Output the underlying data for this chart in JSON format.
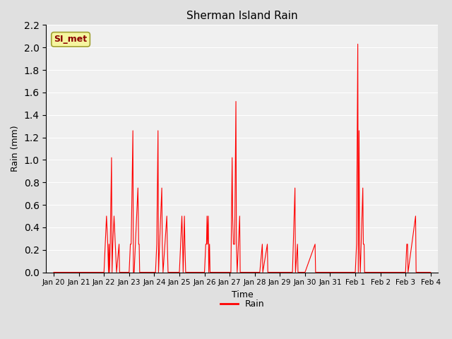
{
  "title": "Sherman Island Rain",
  "xlabel": "Time",
  "ylabel": "Rain (mm)",
  "ylim": [
    0.0,
    2.2
  ],
  "yticks": [
    0.0,
    0.2,
    0.4,
    0.6,
    0.8,
    1.0,
    1.2,
    1.4,
    1.6,
    1.8,
    2.0,
    2.2
  ],
  "line_color": "red",
  "line_label": "Rain",
  "fig_bg_color": "#e0e0e0",
  "plot_bg_color": "#f0f0f0",
  "annotation_text": "SI_met",
  "annotation_bg": "#f5f5a0",
  "annotation_border": "#a0a030",
  "annotation_text_color": "#8b0000",
  "tick_labels": [
    "Jan 20",
    "Jan 21",
    "Jan 22",
    "Jan 23",
    "Jan 24",
    "Jan 25",
    "Jan 26",
    "Jan 27",
    "Jan 28",
    "Jan 29",
    "Jan 30",
    "Jan 31",
    "Feb 1",
    "Feb 2",
    "Feb 3",
    "Feb 4"
  ],
  "tick_positions": [
    0,
    1,
    2,
    3,
    4,
    5,
    6,
    7,
    8,
    9,
    10,
    11,
    12,
    13,
    14,
    15
  ],
  "xlim": [
    -0.3,
    15.3
  ],
  "data": [
    [
      0.0,
      0.0
    ],
    [
      0.02,
      0.0
    ],
    [
      0.1,
      0.0
    ],
    [
      0.5,
      0.0
    ],
    [
      0.9,
      0.0
    ],
    [
      1.0,
      0.0
    ],
    [
      1.5,
      0.0
    ],
    [
      1.9,
      0.0
    ],
    [
      2.0,
      0.0
    ],
    [
      2.05,
      0.25
    ],
    [
      2.1,
      0.5
    ],
    [
      2.15,
      0.25
    ],
    [
      2.18,
      0.0
    ],
    [
      2.2,
      0.25
    ],
    [
      2.22,
      0.0
    ],
    [
      2.25,
      0.25
    ],
    [
      2.3,
      1.02
    ],
    [
      2.32,
      0.0
    ],
    [
      2.35,
      0.25
    ],
    [
      2.4,
      0.5
    ],
    [
      2.45,
      0.25
    ],
    [
      2.5,
      0.0
    ],
    [
      2.6,
      0.25
    ],
    [
      2.62,
      0.0
    ],
    [
      2.7,
      0.0
    ],
    [
      2.8,
      0.0
    ],
    [
      2.9,
      0.0
    ],
    [
      3.0,
      0.0
    ],
    [
      3.05,
      0.25
    ],
    [
      3.08,
      0.25
    ],
    [
      3.1,
      0.5
    ],
    [
      3.15,
      1.26
    ],
    [
      3.17,
      0.0
    ],
    [
      3.2,
      0.0
    ],
    [
      3.25,
      0.25
    ],
    [
      3.3,
      0.5
    ],
    [
      3.35,
      0.75
    ],
    [
      3.38,
      0.25
    ],
    [
      3.4,
      0.25
    ],
    [
      3.42,
      0.0
    ],
    [
      3.5,
      0.0
    ],
    [
      3.7,
      0.0
    ],
    [
      3.9,
      0.0
    ],
    [
      4.0,
      0.0
    ],
    [
      4.05,
      0.0
    ],
    [
      4.1,
      0.25
    ],
    [
      4.15,
      1.26
    ],
    [
      4.17,
      0.0
    ],
    [
      4.3,
      0.75
    ],
    [
      4.32,
      0.25
    ],
    [
      4.35,
      0.0
    ],
    [
      4.5,
      0.5
    ],
    [
      4.52,
      0.25
    ],
    [
      4.55,
      0.0
    ],
    [
      4.9,
      0.0
    ],
    [
      5.0,
      0.0
    ],
    [
      5.05,
      0.25
    ],
    [
      5.1,
      0.5
    ],
    [
      5.13,
      0.25
    ],
    [
      5.15,
      0.0
    ],
    [
      5.2,
      0.5
    ],
    [
      5.22,
      0.25
    ],
    [
      5.25,
      0.0
    ],
    [
      5.5,
      0.0
    ],
    [
      5.9,
      0.0
    ],
    [
      6.0,
      0.0
    ],
    [
      6.05,
      0.25
    ],
    [
      6.08,
      0.25
    ],
    [
      6.1,
      0.5
    ],
    [
      6.12,
      0.25
    ],
    [
      6.15,
      0.5
    ],
    [
      6.17,
      0.0
    ],
    [
      6.2,
      0.25
    ],
    [
      6.22,
      0.0
    ],
    [
      6.5,
      0.0
    ],
    [
      6.9,
      0.0
    ],
    [
      7.0,
      0.0
    ],
    [
      7.05,
      0.0
    ],
    [
      7.1,
      1.02
    ],
    [
      7.12,
      0.5
    ],
    [
      7.15,
      0.25
    ],
    [
      7.2,
      0.25
    ],
    [
      7.25,
      1.52
    ],
    [
      7.27,
      0.25
    ],
    [
      7.3,
      0.0
    ],
    [
      7.35,
      0.25
    ],
    [
      7.4,
      0.5
    ],
    [
      7.42,
      0.0
    ],
    [
      7.5,
      0.0
    ],
    [
      7.7,
      0.0
    ],
    [
      7.9,
      0.0
    ],
    [
      8.0,
      0.0
    ],
    [
      8.2,
      0.0
    ],
    [
      8.3,
      0.25
    ],
    [
      8.32,
      0.0
    ],
    [
      8.5,
      0.25
    ],
    [
      8.52,
      0.0
    ],
    [
      8.9,
      0.0
    ],
    [
      9.0,
      0.0
    ],
    [
      9.5,
      0.0
    ],
    [
      9.6,
      0.75
    ],
    [
      9.62,
      0.0
    ],
    [
      9.7,
      0.25
    ],
    [
      9.72,
      0.0
    ],
    [
      9.9,
      0.0
    ],
    [
      10.0,
      0.0
    ],
    [
      10.4,
      0.25
    ],
    [
      10.42,
      0.0
    ],
    [
      10.9,
      0.0
    ],
    [
      11.0,
      0.0
    ],
    [
      11.9,
      0.0
    ],
    [
      12.0,
      0.0
    ],
    [
      12.05,
      0.25
    ],
    [
      12.1,
      2.03
    ],
    [
      12.12,
      0.0
    ],
    [
      12.15,
      1.26
    ],
    [
      12.17,
      0.25
    ],
    [
      12.2,
      0.0
    ],
    [
      12.3,
      0.75
    ],
    [
      12.32,
      0.25
    ],
    [
      12.35,
      0.25
    ],
    [
      12.37,
      0.0
    ],
    [
      12.5,
      0.0
    ],
    [
      12.9,
      0.0
    ],
    [
      13.0,
      0.0
    ],
    [
      13.9,
      0.0
    ],
    [
      14.0,
      0.0
    ],
    [
      14.05,
      0.25
    ],
    [
      14.08,
      0.25
    ],
    [
      14.1,
      0.0
    ],
    [
      14.4,
      0.5
    ],
    [
      14.42,
      0.0
    ],
    [
      14.9,
      0.0
    ],
    [
      15.0,
      0.0
    ]
  ]
}
